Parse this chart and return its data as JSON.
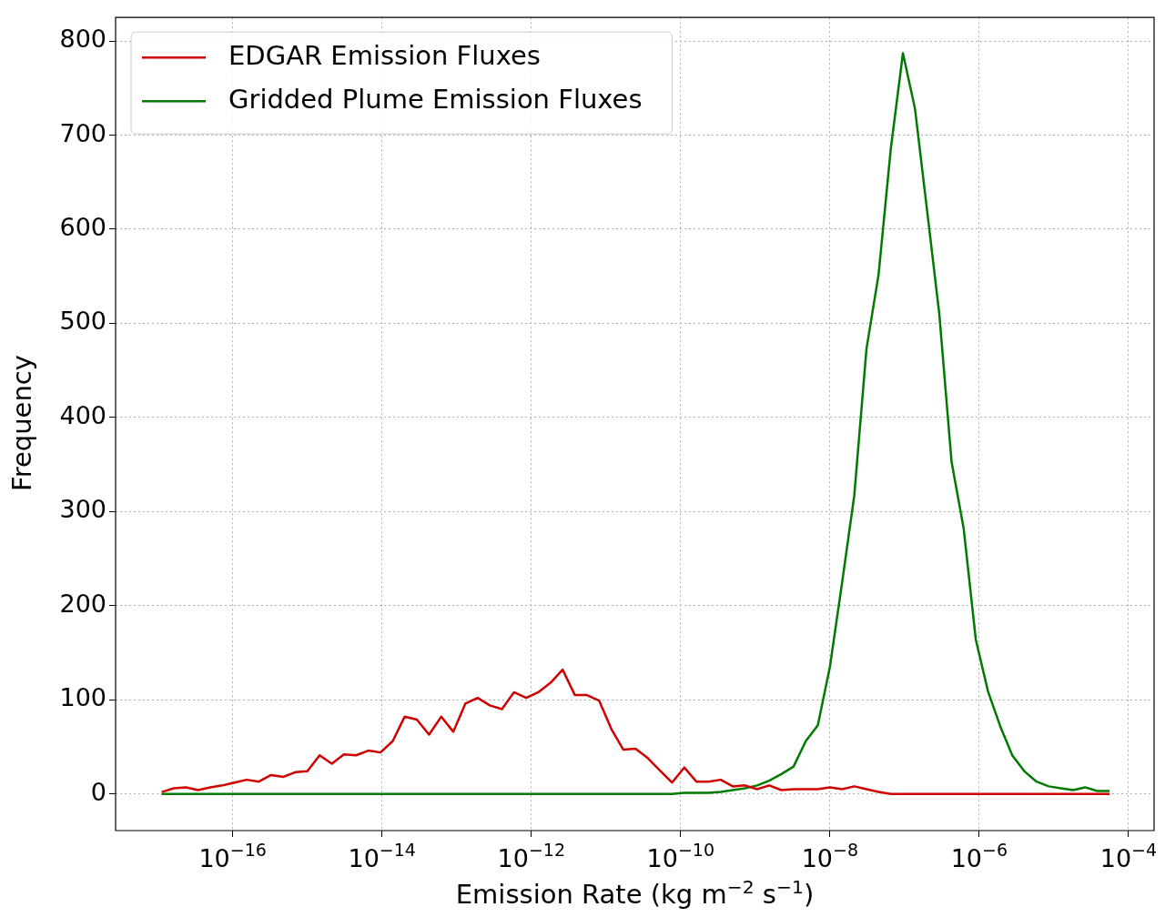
{
  "chart_data": {
    "type": "line",
    "xlabel": "Emission Rate (kg m$^{−2}$ s$^{−1}$)",
    "ylabel": "Frequency",
    "log": "x",
    "grid": true,
    "legend": "top left",
    "marker": "none",
    "line_style": "solid",
    "xlim": [
      2.7e-18,
      0.00022
    ],
    "xticks": [
      {
        "value": 1e-16,
        "label": "10$^{−16}$"
      },
      {
        "value": 1e-14,
        "label": "10$^{−14}$"
      },
      {
        "value": 1e-12,
        "label": "10$^{−12}$"
      },
      {
        "value": 1e-10,
        "label": "10$^{−10}$"
      },
      {
        "value": 1e-08,
        "label": "10$^{−8}$"
      },
      {
        "value": 1e-06,
        "label": "10$^{−6}$"
      },
      {
        "value": 0.0001,
        "label": "10$^{−4}$"
      }
    ],
    "ylim": [
      -39,
      825
    ],
    "yticks": [
      0,
      100,
      200,
      300,
      400,
      500,
      600,
      700,
      800
    ],
    "x": [
      1.12e-17,
      1.63e-17,
      2.37e-17,
      3.44e-17,
      5.01e-17,
      7.29e-17,
      1.06e-16,
      1.54e-16,
      2.24e-16,
      3.27e-16,
      4.75e-16,
      6.9e-16,
      1e-15,
      1.46e-15,
      2.13e-15,
      3.09e-15,
      4.5e-15,
      6.55e-15,
      9.53e-15,
      1.39e-14,
      2.01e-14,
      2.93e-14,
      4.27e-14,
      6.21e-14,
      9.02e-14,
      1.31e-13,
      1.91e-13,
      2.78e-13,
      4.04e-13,
      5.87e-13,
      8.55e-13,
      1.24e-12,
      1.81e-12,
      2.63e-12,
      3.83e-12,
      5.57e-12,
      8.11e-12,
      1.18e-11,
      1.71e-11,
      2.49e-11,
      3.63e-11,
      5.27e-11,
      7.67e-11,
      1.12e-10,
      1.63e-10,
      2.37e-10,
      3.44e-10,
      5e-10,
      7.28e-10,
      1.06e-09,
      1.54e-09,
      2.24e-09,
      3.26e-09,
      4.74e-09,
      6.89e-09,
      1e-08,
      1.46e-08,
      2.12e-08,
      3.09e-08,
      4.49e-08,
      6.53e-08,
      9.51e-08,
      1.38e-07,
      2.01e-07,
      2.92e-07,
      4.26e-07,
      6.19e-07,
      9e-07,
      1.31e-06,
      1.91e-06,
      2.77e-06,
      4.03e-06,
      5.86e-06,
      8.53e-06,
      1.24e-05,
      1.81e-05,
      2.62e-05,
      3.82e-05,
      5.56e-05
    ],
    "series": [
      {
        "name": "EDGAR Emission Fluxes",
        "color": "#d10000",
        "values": [
          2,
          6,
          7,
          4,
          7,
          9,
          12,
          15,
          13,
          20,
          18,
          23,
          24,
          41,
          32,
          42,
          41,
          46,
          44,
          56,
          82,
          79,
          63,
          82,
          66,
          96,
          102,
          94,
          90,
          108,
          102,
          108,
          118,
          132,
          105,
          105,
          99,
          69,
          47,
          48,
          38,
          25,
          12,
          28,
          13,
          13,
          15,
          8,
          9,
          5,
          9,
          4,
          5,
          5,
          5,
          7,
          5,
          8,
          5,
          2,
          0,
          0,
          0,
          0,
          0,
          0,
          0,
          0,
          0,
          0,
          0,
          0,
          0,
          0,
          0,
          0,
          0,
          0,
          0
        ]
      },
      {
        "name": "Gridded Plume Emission Fluxes",
        "color": "#007a00",
        "values": [
          0,
          0,
          0,
          0,
          0,
          0,
          0,
          0,
          0,
          0,
          0,
          0,
          0,
          0,
          0,
          0,
          0,
          0,
          0,
          0,
          0,
          0,
          0,
          0,
          0,
          0,
          0,
          0,
          0,
          0,
          0,
          0,
          0,
          0,
          0,
          0,
          0,
          0,
          0,
          0,
          0,
          0,
          0,
          1,
          1,
          1,
          2,
          4,
          6,
          9,
          14,
          21,
          29,
          56,
          73,
          135,
          225,
          317,
          473,
          552,
          685,
          787,
          728,
          619,
          510,
          353,
          282,
          164,
          109,
          72,
          41,
          24,
          13,
          8,
          6,
          4,
          7,
          3,
          3
        ]
      }
    ]
  }
}
